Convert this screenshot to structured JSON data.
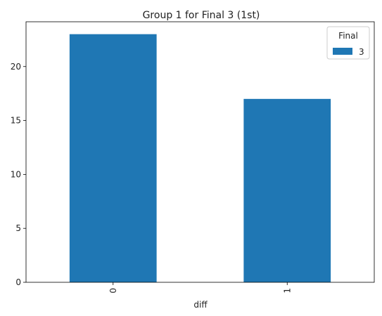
{
  "chart_data": {
    "type": "bar",
    "title": "Group 1 for Final 3 (1st)",
    "xlabel": "diff",
    "ylabel": "",
    "categories": [
      "0",
      "1"
    ],
    "series": [
      {
        "name": "3",
        "values": [
          23,
          17
        ],
        "color": "#1f77b4"
      }
    ],
    "ylim": [
      0,
      24.15
    ],
    "yticks": [
      0,
      5,
      10,
      15,
      20
    ],
    "legend": {
      "title": "Final",
      "placement": "top-right"
    },
    "grid": false,
    "x_tick_rotation": "vertical"
  }
}
